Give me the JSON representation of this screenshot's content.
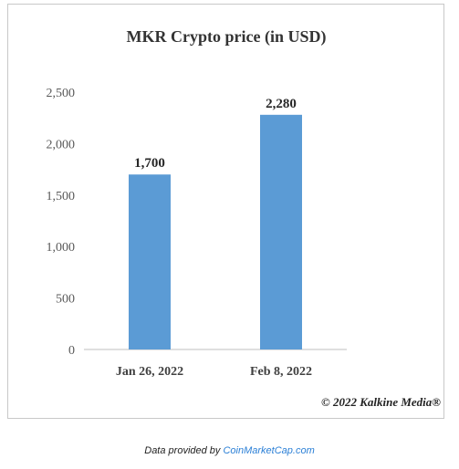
{
  "chart_data": {
    "type": "bar",
    "title": "MKR Crypto price (in USD)",
    "categories": [
      "Jan 26, 2022",
      "Feb 8, 2022"
    ],
    "values": [
      1700,
      2280
    ],
    "value_labels": [
      "1,700",
      "2,280"
    ],
    "ylim": [
      0,
      2500
    ],
    "yticks": [
      0,
      500,
      1000,
      1500,
      2000,
      2500
    ],
    "ytick_labels": [
      "0",
      "500",
      "1,000",
      "1,500",
      "2,000",
      "2,500"
    ],
    "xlabel": "",
    "ylabel": "",
    "grid": false,
    "legend": "none",
    "bar_color": "#5b9bd5"
  },
  "watermark": "© 2022 Kalkine Media®",
  "caption": {
    "prefix": "Data provided by ",
    "link_text": "CoinMarketCap.com"
  }
}
